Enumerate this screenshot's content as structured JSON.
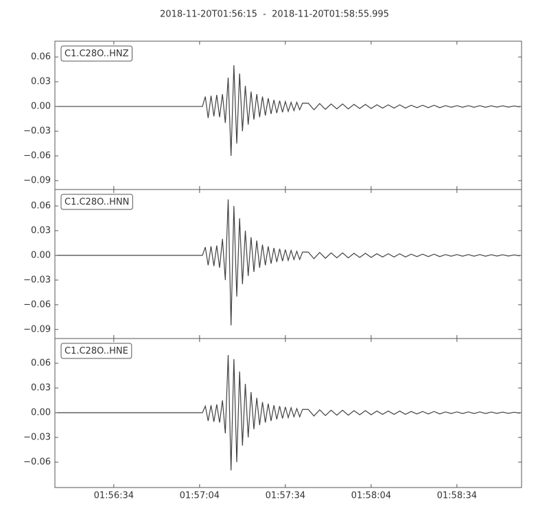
{
  "title": "2018-11-20T01:56:15  -  2018-11-20T01:58:55.995",
  "chart_data": [
    {
      "type": "line",
      "x": [
        "01:56:14",
        "01:57:05",
        "01:57:06",
        "01:57:07",
        "01:57:08",
        "01:57:09",
        "01:57:10",
        "01:57:11",
        "01:57:12",
        "01:57:13",
        "01:57:14",
        "01:57:15",
        "01:57:16",
        "01:57:17",
        "01:57:18",
        "01:57:19",
        "01:57:20",
        "01:57:21",
        "01:57:22",
        "01:57:23",
        "01:57:24",
        "01:57:25",
        "01:57:26",
        "01:57:27",
        "01:57:28",
        "01:57:29",
        "01:57:30",
        "01:57:31",
        "01:57:32",
        "01:57:33",
        "01:57:34",
        "01:57:35",
        "01:57:36",
        "01:57:37",
        "01:57:38",
        "01:57:39",
        "01:57:40",
        "01:57:42",
        "01:57:44",
        "01:57:46",
        "01:57:48",
        "01:57:50",
        "01:57:52",
        "01:57:54",
        "01:57:56",
        "01:57:58",
        "01:58:00",
        "01:58:02",
        "01:58:04",
        "01:58:06",
        "01:58:08",
        "01:58:10",
        "01:58:12",
        "01:58:14",
        "01:58:16",
        "01:58:18",
        "01:58:20",
        "01:58:22",
        "01:58:24",
        "01:58:26",
        "01:58:28",
        "01:58:30",
        "01:58:32",
        "01:58:34",
        "01:58:36",
        "01:58:38",
        "01:58:40",
        "01:58:42",
        "01:58:44",
        "01:58:46",
        "01:58:48",
        "01:58:50",
        "01:58:52",
        "01:58:54",
        "01:58:56"
      ],
      "series": [
        {
          "name": "C1.C28O..HNZ",
          "color": "#404040",
          "values": [
            0,
            0,
            0.012,
            -0.014,
            0.013,
            -0.012,
            0.014,
            -0.013,
            0.015,
            -0.02,
            0.035,
            -0.06,
            0.05,
            -0.045,
            0.04,
            -0.03,
            0.025,
            -0.022,
            0.018,
            -0.016,
            0.015,
            -0.013,
            0.012,
            -0.011,
            0.01,
            -0.009,
            0.008,
            -0.008,
            0.007,
            -0.007,
            0.006,
            -0.006,
            0.005,
            -0.005,
            0.005,
            -0.004,
            0.004,
            0.004,
            -0.004,
            0.0035,
            -0.0035,
            0.003,
            -0.003,
            0.003,
            -0.003,
            0.0025,
            -0.0025,
            0.0025,
            -0.0025,
            0.002,
            -0.002,
            0.002,
            -0.002,
            0.002,
            -0.002,
            0.0015,
            -0.0015,
            0.0015,
            -0.0015,
            0.0015,
            -0.0015,
            0.001,
            -0.001,
            0.001,
            -0.001,
            0.001,
            -0.001,
            0.001,
            -0.001,
            0.0008,
            -0.0008,
            0.0008,
            -0.0008,
            0.0006,
            -0.0006
          ]
        }
      ],
      "xlim": [
        "01:56:13.4",
        "01:58:56.6"
      ],
      "ylim": [
        -0.1008,
        0.0792
      ],
      "yticks": [
        0.06,
        0.03,
        {
          "value": 0,
          "label": "0.00"
        },
        {
          "value": -0.03,
          "label": "−0.03"
        },
        {
          "value": -0.06,
          "label": "−0.06"
        },
        {
          "value": -0.09,
          "label": "−0.09"
        }
      ]
    },
    {
      "type": "line",
      "x": [
        "01:56:14",
        "01:57:05",
        "01:57:06",
        "01:57:07",
        "01:57:08",
        "01:57:09",
        "01:57:10",
        "01:57:11",
        "01:57:12",
        "01:57:13",
        "01:57:14",
        "01:57:15",
        "01:57:16",
        "01:57:17",
        "01:57:18",
        "01:57:19",
        "01:57:20",
        "01:57:21",
        "01:57:22",
        "01:57:23",
        "01:57:24",
        "01:57:25",
        "01:57:26",
        "01:57:27",
        "01:57:28",
        "01:57:29",
        "01:57:30",
        "01:57:31",
        "01:57:32",
        "01:57:33",
        "01:57:34",
        "01:57:35",
        "01:57:36",
        "01:57:37",
        "01:57:38",
        "01:57:39",
        "01:57:40",
        "01:57:42",
        "01:57:44",
        "01:57:46",
        "01:57:48",
        "01:57:50",
        "01:57:52",
        "01:57:54",
        "01:57:56",
        "01:57:58",
        "01:58:00",
        "01:58:02",
        "01:58:04",
        "01:58:06",
        "01:58:08",
        "01:58:10",
        "01:58:12",
        "01:58:14",
        "01:58:16",
        "01:58:18",
        "01:58:20",
        "01:58:22",
        "01:58:24",
        "01:58:26",
        "01:58:28",
        "01:58:30",
        "01:58:32",
        "01:58:34",
        "01:58:36",
        "01:58:38",
        "01:58:40",
        "01:58:42",
        "01:58:44",
        "01:58:46",
        "01:58:48",
        "01:58:50",
        "01:58:52",
        "01:58:54",
        "01:58:56"
      ],
      "series": [
        {
          "name": "C1.C28O..HNN",
          "color": "#404040",
          "values": [
            0,
            0,
            0.01,
            -0.012,
            0.011,
            -0.013,
            0.012,
            -0.015,
            0.02,
            -0.03,
            0.068,
            -0.085,
            0.06,
            -0.05,
            0.045,
            -0.035,
            0.03,
            -0.025,
            0.022,
            -0.02,
            0.018,
            -0.015,
            0.013,
            -0.012,
            0.011,
            -0.01,
            0.009,
            -0.008,
            0.008,
            -0.007,
            0.007,
            -0.006,
            0.006,
            -0.005,
            0.005,
            -0.005,
            0.004,
            0.004,
            -0.004,
            0.0035,
            -0.0035,
            0.003,
            -0.003,
            0.003,
            -0.003,
            0.0025,
            -0.0025,
            0.0025,
            -0.0025,
            0.002,
            -0.002,
            0.002,
            -0.002,
            0.002,
            -0.002,
            0.0015,
            -0.0015,
            0.0015,
            -0.0015,
            0.0015,
            -0.0015,
            0.001,
            -0.001,
            0.001,
            -0.001,
            0.001,
            -0.001,
            0.001,
            -0.001,
            0.0008,
            -0.0008,
            0.0008,
            -0.0008,
            0.0006,
            -0.0006
          ]
        }
      ],
      "xlim": [
        "01:56:13.4",
        "01:58:56.6"
      ],
      "ylim": [
        -0.101,
        0.08
      ],
      "yticks": [
        0.06,
        0.03,
        {
          "value": 0,
          "label": "0.00"
        },
        {
          "value": -0.03,
          "label": "−0.03"
        },
        {
          "value": -0.06,
          "label": "−0.06"
        },
        {
          "value": -0.09,
          "label": "−0.09"
        }
      ]
    },
    {
      "type": "line",
      "x": [
        "01:56:14",
        "01:57:05",
        "01:57:06",
        "01:57:07",
        "01:57:08",
        "01:57:09",
        "01:57:10",
        "01:57:11",
        "01:57:12",
        "01:57:13",
        "01:57:14",
        "01:57:15",
        "01:57:16",
        "01:57:17",
        "01:57:18",
        "01:57:19",
        "01:57:20",
        "01:57:21",
        "01:57:22",
        "01:57:23",
        "01:57:24",
        "01:57:25",
        "01:57:26",
        "01:57:27",
        "01:57:28",
        "01:57:29",
        "01:57:30",
        "01:57:31",
        "01:57:32",
        "01:57:33",
        "01:57:34",
        "01:57:35",
        "01:57:36",
        "01:57:37",
        "01:57:38",
        "01:57:39",
        "01:57:40",
        "01:57:42",
        "01:57:44",
        "01:57:46",
        "01:57:48",
        "01:57:50",
        "01:57:52",
        "01:57:54",
        "01:57:56",
        "01:57:58",
        "01:58:00",
        "01:58:02",
        "01:58:04",
        "01:58:06",
        "01:58:08",
        "01:58:10",
        "01:58:12",
        "01:58:14",
        "01:58:16",
        "01:58:18",
        "01:58:20",
        "01:58:22",
        "01:58:24",
        "01:58:26",
        "01:58:28",
        "01:58:30",
        "01:58:32",
        "01:58:34",
        "01:58:36",
        "01:58:38",
        "01:58:40",
        "01:58:42",
        "01:58:44",
        "01:58:46",
        "01:58:48",
        "01:58:50",
        "01:58:52",
        "01:58:54",
        "01:58:56"
      ],
      "series": [
        {
          "name": "C1.C28O..HNE",
          "color": "#404040",
          "values": [
            0,
            0,
            0.008,
            -0.01,
            0.009,
            -0.011,
            0.01,
            -0.012,
            0.015,
            -0.025,
            0.07,
            -0.07,
            0.065,
            -0.06,
            0.05,
            -0.04,
            0.035,
            -0.03,
            0.025,
            -0.02,
            0.018,
            -0.015,
            0.013,
            -0.012,
            0.011,
            -0.01,
            0.009,
            -0.008,
            0.008,
            -0.007,
            0.007,
            -0.006,
            0.006,
            -0.005,
            0.005,
            -0.005,
            0.004,
            0.004,
            -0.004,
            0.0035,
            -0.0035,
            0.003,
            -0.003,
            0.003,
            -0.003,
            0.0025,
            -0.0025,
            0.0025,
            -0.0025,
            0.002,
            -0.002,
            0.002,
            -0.002,
            0.002,
            -0.002,
            0.0015,
            -0.0015,
            0.0015,
            -0.0015,
            0.0015,
            -0.0015,
            0.001,
            -0.001,
            0.001,
            -0.001,
            0.001,
            -0.001,
            0.001,
            -0.001,
            0.0008,
            -0.0008,
            0.0008,
            -0.0008,
            0.0006,
            -0.0006
          ]
        }
      ],
      "xlim": [
        "01:56:13.4",
        "01:58:56.6"
      ],
      "ylim": [
        -0.0908,
        0.09
      ],
      "yticks": [
        0.06,
        0.03,
        {
          "value": 0,
          "label": "0.00"
        },
        {
          "value": -0.03,
          "label": "−0.03"
        },
        {
          "value": -0.06,
          "label": "−0.06"
        }
      ],
      "xticks": [
        "01:56:34",
        "01:57:04",
        "01:57:34",
        "01:58:04",
        "01:58:34"
      ]
    }
  ]
}
